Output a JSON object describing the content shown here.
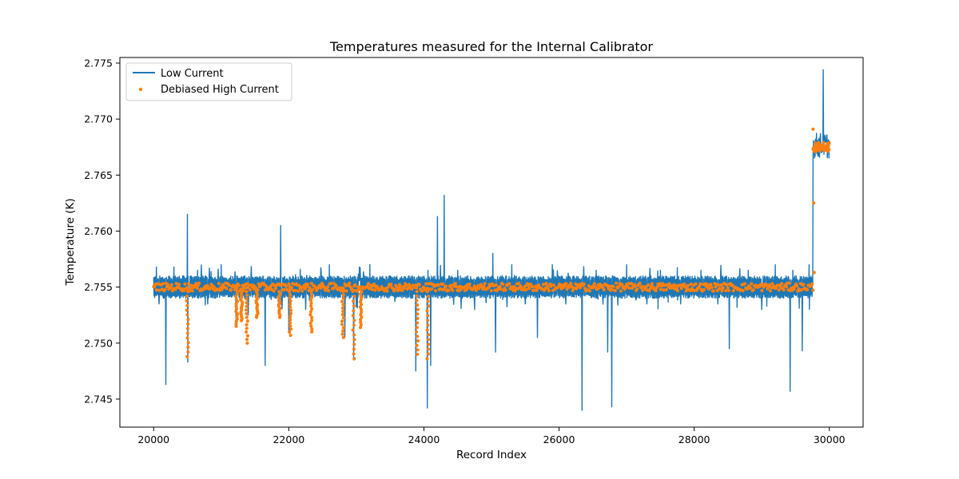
{
  "chart_data": {
    "type": "line",
    "title": "Temperatures measured for the Internal Calibrator",
    "xlabel": "Record Index",
    "ylabel": "Temperature (K)",
    "xlim": [
      19500,
      30500
    ],
    "ylim": [
      2.7425,
      2.7755
    ],
    "x_ticks": [
      20000,
      22000,
      24000,
      26000,
      28000,
      30000
    ],
    "y_ticks": [
      2.745,
      2.75,
      2.755,
      2.76,
      2.765,
      2.77,
      2.775
    ],
    "x_tick_labels": [
      "20000",
      "22000",
      "24000",
      "26000",
      "28000",
      "30000"
    ],
    "y_tick_labels": [
      "2.745",
      "2.750",
      "2.755",
      "2.760",
      "2.765",
      "2.770",
      "2.775"
    ],
    "grid": false,
    "legend": {
      "position": "upper-left"
    },
    "colors": {
      "low": "#1f77b4",
      "high": "#ff7f0e"
    },
    "series": [
      {
        "name": "Low Current",
        "kind": "line",
        "x_range": [
          20000,
          30000
        ],
        "baseline": 2.755,
        "band": [
          2.7542,
          2.7558
        ],
        "spikes": [
          {
            "x": 20040,
            "y": 2.7568
          },
          {
            "x": 20080,
            "y": 2.7535
          },
          {
            "x": 20180,
            "y": 2.7463
          },
          {
            "x": 20300,
            "y": 2.7568
          },
          {
            "x": 20500,
            "y": 2.7615
          },
          {
            "x": 20505,
            "y": 2.7483
          },
          {
            "x": 20650,
            "y": 2.7565
          },
          {
            "x": 20800,
            "y": 2.7535
          },
          {
            "x": 21000,
            "y": 2.757
          },
          {
            "x": 21220,
            "y": 2.752
          },
          {
            "x": 21400,
            "y": 2.7525
          },
          {
            "x": 21650,
            "y": 2.748
          },
          {
            "x": 21880,
            "y": 2.7605
          },
          {
            "x": 22000,
            "y": 2.751
          },
          {
            "x": 22250,
            "y": 2.753
          },
          {
            "x": 22600,
            "y": 2.757
          },
          {
            "x": 22830,
            "y": 2.7505
          },
          {
            "x": 22960,
            "y": 2.7485
          },
          {
            "x": 23200,
            "y": 2.757
          },
          {
            "x": 23500,
            "y": 2.756
          },
          {
            "x": 23880,
            "y": 2.7475
          },
          {
            "x": 24050,
            "y": 2.7442
          },
          {
            "x": 24100,
            "y": 2.748
          },
          {
            "x": 24200,
            "y": 2.7613
          },
          {
            "x": 24300,
            "y": 2.7632
          },
          {
            "x": 24500,
            "y": 2.7565
          },
          {
            "x": 24750,
            "y": 2.753
          },
          {
            "x": 25020,
            "y": 2.758
          },
          {
            "x": 25060,
            "y": 2.7492
          },
          {
            "x": 25300,
            "y": 2.757
          },
          {
            "x": 25500,
            "y": 2.7535
          },
          {
            "x": 25680,
            "y": 2.7505
          },
          {
            "x": 25900,
            "y": 2.757
          },
          {
            "x": 26100,
            "y": 2.7535
          },
          {
            "x": 26340,
            "y": 2.744
          },
          {
            "x": 26550,
            "y": 2.7565
          },
          {
            "x": 26720,
            "y": 2.7492
          },
          {
            "x": 26780,
            "y": 2.7443
          },
          {
            "x": 27000,
            "y": 2.757
          },
          {
            "x": 27300,
            "y": 2.7535
          },
          {
            "x": 27500,
            "y": 2.7565
          },
          {
            "x": 27800,
            "y": 2.7535
          },
          {
            "x": 28100,
            "y": 2.7565
          },
          {
            "x": 28350,
            "y": 2.7535
          },
          {
            "x": 28520,
            "y": 2.7495
          },
          {
            "x": 28800,
            "y": 2.7565
          },
          {
            "x": 29000,
            "y": 2.753
          },
          {
            "x": 29200,
            "y": 2.757
          },
          {
            "x": 29420,
            "y": 2.7457
          },
          {
            "x": 29600,
            "y": 2.7493
          },
          {
            "x": 29700,
            "y": 2.757
          }
        ],
        "shift": {
          "x_start": 29760,
          "level": 2.7675,
          "band": [
            2.7665,
            2.7688
          ],
          "peak_x": 29910,
          "peak_y": 2.7744
        }
      },
      {
        "name": "Debiased High Current",
        "kind": "scatter",
        "x_range": [
          20000,
          30000
        ],
        "baseline": 2.755,
        "dips": [
          {
            "x": 20500,
            "y": 2.7488
          },
          {
            "x": 21230,
            "y": 2.7515
          },
          {
            "x": 21300,
            "y": 2.752
          },
          {
            "x": 21380,
            "y": 2.75
          },
          {
            "x": 21530,
            "y": 2.7523
          },
          {
            "x": 21860,
            "y": 2.7523
          },
          {
            "x": 22020,
            "y": 2.7507
          },
          {
            "x": 22330,
            "y": 2.751
          },
          {
            "x": 22800,
            "y": 2.7505
          },
          {
            "x": 22960,
            "y": 2.7486
          },
          {
            "x": 23070,
            "y": 2.7514
          },
          {
            "x": 23900,
            "y": 2.749
          },
          {
            "x": 24060,
            "y": 2.7486
          }
        ],
        "shift": {
          "x_start": 29760,
          "level": 2.7675,
          "outliers": [
            2.7691,
            2.7625,
            2.7563
          ]
        }
      }
    ]
  }
}
